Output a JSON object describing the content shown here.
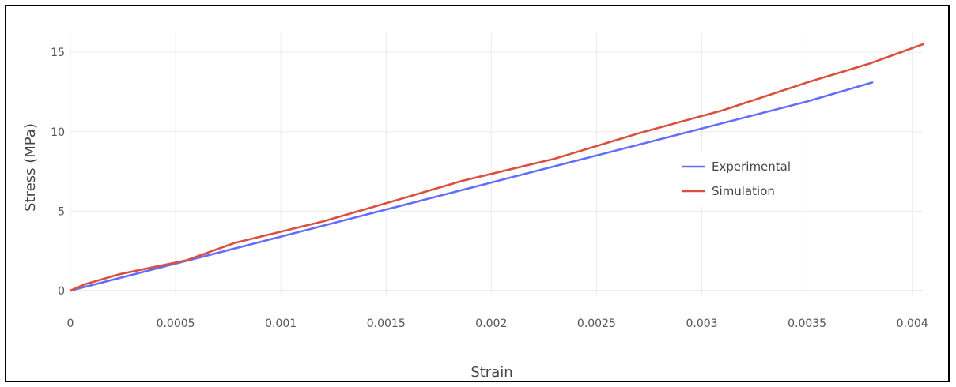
{
  "chart_data": {
    "type": "line",
    "xlabel": "Strain",
    "ylabel": "Stress (MPa)",
    "xlim": [
      0,
      0.00405
    ],
    "ylim": [
      -0.3,
      16.2
    ],
    "x_ticks": [
      "0",
      "0.0005",
      "0.001",
      "0.0015",
      "0.002",
      "0.0025",
      "0.003",
      "0.0035",
      "0.004"
    ],
    "x_tick_values": [
      0,
      0.0005,
      0.001,
      0.0015,
      0.002,
      0.0025,
      0.003,
      0.0035,
      0.004
    ],
    "y_ticks": [
      "0",
      "5",
      "10",
      "15"
    ],
    "y_tick_values": [
      0,
      5,
      10,
      15
    ],
    "grid": true,
    "legend_position": "right-middle",
    "series": [
      {
        "name": "Experimental",
        "color": "#636efa",
        "x": [
          0,
          0.0005,
          0.001,
          0.0015,
          0.002,
          0.0025,
          0.003,
          0.0035,
          0.00381
        ],
        "y": [
          0,
          1.7,
          3.4,
          5.1,
          6.8,
          8.5,
          10.2,
          11.9,
          13.1
        ]
      },
      {
        "name": "Simulation",
        "color": "#d9503f",
        "x": [
          0,
          7e-05,
          0.00024,
          0.00055,
          0.00078,
          0.0012,
          0.0015,
          0.00186,
          0.0023,
          0.0027,
          0.0031,
          0.0035,
          0.0038,
          0.00405
        ],
        "y": [
          0,
          0.4,
          1.05,
          1.9,
          3.0,
          4.35,
          5.5,
          6.9,
          8.3,
          9.9,
          11.35,
          13.1,
          14.3,
          15.5
        ]
      }
    ]
  }
}
